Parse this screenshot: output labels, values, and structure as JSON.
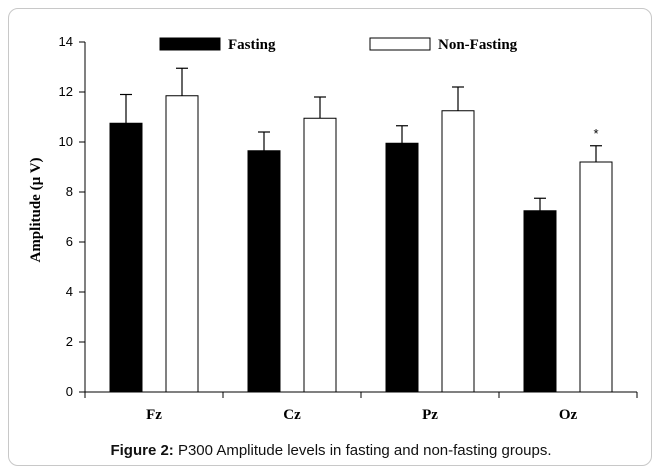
{
  "caption": {
    "prefix": "Figure 2:",
    "text": " P300 Amplitude levels in fasting and non-fasting groups."
  },
  "chart_data": {
    "type": "bar",
    "categories": [
      "Fz",
      "Cz",
      "Pz",
      "Oz"
    ],
    "ylabel": "Amplitude (µ V)",
    "ylim": [
      0,
      14
    ],
    "yticks": [
      0,
      2,
      4,
      6,
      8,
      10,
      12,
      14
    ],
    "legend_position": "top",
    "series": [
      {
        "name": "Fasting",
        "color": "#000000",
        "values": [
          10.75,
          9.65,
          9.95,
          7.25
        ],
        "errors": [
          1.15,
          0.75,
          0.7,
          0.5
        ]
      },
      {
        "name": "Non-Fasting",
        "color": "#ffffff",
        "values": [
          11.85,
          10.95,
          11.25,
          9.2
        ],
        "errors": [
          1.1,
          0.85,
          0.95,
          0.65
        ]
      }
    ],
    "annotations": [
      {
        "category": "Oz",
        "series": "Non-Fasting",
        "text": "*"
      }
    ]
  }
}
